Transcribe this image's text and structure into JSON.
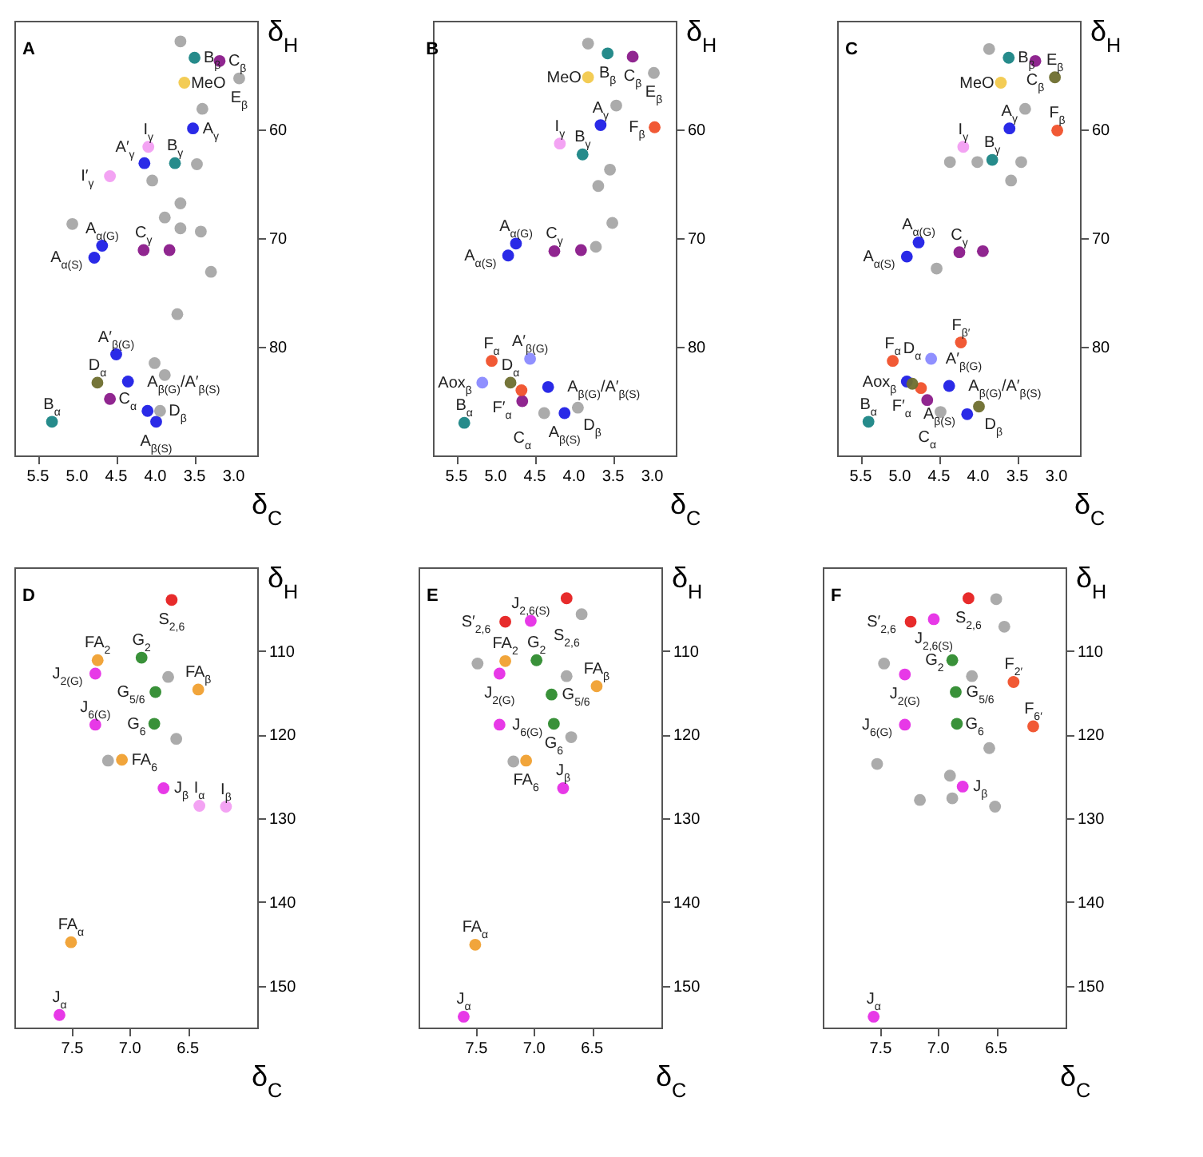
{
  "chart_data": [
    {
      "type": "scatter",
      "title": "A",
      "xlabel": "δ$_{C}$",
      "ylabel": "δ$_{H}$",
      "xlim": [
        5.8,
        2.7
      ],
      "ylim": [
        90,
        50
      ],
      "xticks": [
        5.5,
        {
          "value": 5,
          "label": "5.0"
        },
        4.5,
        {
          "value": 4,
          "label": "4.0"
        },
        3.5,
        {
          "value": 3,
          "label": "3.0"
        }
      ],
      "yticks": [
        60,
        70,
        80
      ],
      "marker": "circle",
      "grid": false,
      "series": [
        {
          "color": "#1f1fe6",
          "x": [
            3.52,
            4.14,
            4.68,
            4.78,
            4.5,
            4.35,
            4.1,
            3.99
          ],
          "values": [
            59.9,
            63.1,
            70.7,
            71.8,
            80.7,
            83.2,
            85.9,
            86.9
          ]
        },
        {
          "color": "#1a8585",
          "x": [
            3.5,
            3.75,
            5.32
          ],
          "values": [
            53.4,
            63.1,
            86.9
          ]
        },
        {
          "color": "#8a1a8a",
          "x": [
            3.18,
            4.15,
            3.82,
            4.58
          ],
          "values": [
            53.7,
            71.1,
            71.1,
            84.8
          ]
        },
        {
          "color": "#f2c94c",
          "x": [
            3.63
          ],
          "values": [
            55.7
          ]
        },
        {
          "color": "#f29ef2",
          "x": [
            4.09,
            4.58
          ],
          "values": [
            61.6,
            64.3
          ]
        },
        {
          "color": "#6e6e2e",
          "x": [
            4.74
          ],
          "values": [
            83.3
          ]
        },
        {
          "color": "#a6a6a6",
          "x": [
            2.93,
            3.94,
            3.68,
            3.4,
            3.47,
            4.04,
            3.68,
            3.88,
            3.68,
            3.42,
            5.06,
            3.29,
            3.72,
            4.01,
            3.88
          ],
          "values": [
            55.3,
            85.9,
            51.9,
            58.1,
            63.2,
            64.7,
            66.8,
            68.1,
            69.1,
            69.4,
            68.7,
            73.1,
            77.0,
            81.5,
            82.6
          ]
        }
      ],
      "annotations": [
        {
          "text": "B$_{β}$",
          "x": 3.5,
          "y": 53.4
        },
        {
          "text": "C$_{β}$",
          "x": 3.18,
          "y": 53.7
        },
        {
          "text": "E$_{β}$",
          "x": 2.93,
          "y": 55.3
        },
        {
          "text": "MeO",
          "x": 3.63,
          "y": 55.7
        },
        {
          "text": "A$_{γ}$",
          "x": 3.52,
          "y": 59.9
        },
        {
          "text": "I$_{γ}$",
          "x": 4.09,
          "y": 61.6
        },
        {
          "text": "A′$_{γ}$",
          "x": 4.14,
          "y": 63.1
        },
        {
          "text": "I′$_{γ}$",
          "x": 4.58,
          "y": 64.3
        },
        {
          "text": "B$_{γ}$",
          "x": 3.75,
          "y": 63.1
        },
        {
          "text": "A$_{α(G)}$",
          "x": 4.68,
          "y": 70.7
        },
        {
          "text": "A$_{α(S)}$",
          "x": 4.78,
          "y": 71.8
        },
        {
          "text": "C$_{γ}$",
          "x": 4.15,
          "y": 71.1
        },
        {
          "text": "A′$_{β(G)}$",
          "x": 4.5,
          "y": 80.7
        },
        {
          "text": "D$_{α}$",
          "x": 4.74,
          "y": 83.3
        },
        {
          "text": "A$_{β(G)}$/A′$_{β(S)}$",
          "x": 4.35,
          "y": 83.2
        },
        {
          "text": "C$_{α}$",
          "x": 4.58,
          "y": 84.8
        },
        {
          "text": "D$_{β}$",
          "x": 3.94,
          "y": 85.9
        },
        {
          "text": "A$_{β(S)}$",
          "x": 3.99,
          "y": 86.9
        },
        {
          "text": "B$_{α}$",
          "x": 5.32,
          "y": 86.9
        }
      ]
    },
    {
      "type": "scatter",
      "title": "B",
      "xlabel": "δ$_{C}$",
      "ylabel": "δ$_{H}$",
      "xlim": [
        5.8,
        2.7
      ],
      "ylim": [
        90,
        50
      ],
      "xticks": [
        5.5,
        {
          "value": 5,
          "label": "5.0"
        },
        4.5,
        {
          "value": 4,
          "label": "4.0"
        },
        3.5,
        {
          "value": 3,
          "label": "3.0"
        }
      ],
      "yticks": [
        60,
        70,
        80
      ],
      "marker": "circle",
      "grid": false,
      "series": [
        {
          "color": "#1f1fe6",
          "x": [
            3.66,
            4.74,
            4.84,
            4.33,
            4.12
          ],
          "values": [
            59.6,
            70.5,
            71.6,
            83.7,
            86.1
          ]
        },
        {
          "color": "#8a8aff",
          "x": [
            4.56,
            5.17
          ],
          "values": [
            81.1,
            83.3
          ]
        },
        {
          "color": "#1a8585",
          "x": [
            3.57,
            3.89,
            5.4
          ],
          "values": [
            53.0,
            62.3,
            87.0
          ]
        },
        {
          "color": "#8a1a8a",
          "x": [
            3.25,
            4.25,
            3.91,
            4.66
          ],
          "values": [
            53.3,
            71.2,
            71.1,
            85.0
          ]
        },
        {
          "color": "#f2c94c",
          "x": [
            3.82
          ],
          "values": [
            55.2
          ]
        },
        {
          "color": "#f0502a",
          "x": [
            2.97,
            5.05,
            4.67
          ],
          "values": [
            59.8,
            81.3,
            84.0
          ]
        },
        {
          "color": "#f29ef2",
          "x": [
            4.18
          ],
          "values": [
            61.3
          ]
        },
        {
          "color": "#6e6e2e",
          "x": [
            4.81
          ],
          "values": [
            83.3
          ]
        },
        {
          "color": "#a6a6a6",
          "x": [
            2.98,
            3.95,
            3.82,
            3.46,
            3.54,
            3.69,
            3.51,
            3.72,
            4.38
          ],
          "values": [
            54.8,
            85.6,
            52.1,
            57.8,
            63.7,
            65.2,
            68.6,
            70.8,
            86.1
          ]
        }
      ],
      "annotations": [
        {
          "text": "B$_{β}$",
          "x": 3.57,
          "y": 53.0
        },
        {
          "text": "C$_{β}$",
          "x": 3.25,
          "y": 53.3
        },
        {
          "text": "E$_{β}$",
          "x": 2.98,
          "y": 54.8
        },
        {
          "text": "MeO",
          "x": 3.82,
          "y": 55.2
        },
        {
          "text": "A$_{γ}$",
          "x": 3.66,
          "y": 59.6
        },
        {
          "text": "F$_{β}$",
          "x": 2.97,
          "y": 59.8
        },
        {
          "text": "I$_{γ}$",
          "x": 4.18,
          "y": 61.3
        },
        {
          "text": "B$_{γ}$",
          "x": 3.89,
          "y": 62.3
        },
        {
          "text": "A$_{α(G)}$",
          "x": 4.74,
          "y": 70.5
        },
        {
          "text": "A$_{α(S)}$",
          "x": 4.84,
          "y": 71.6
        },
        {
          "text": "C$_{γ}$",
          "x": 4.25,
          "y": 71.2
        },
        {
          "text": "F$_{α}$",
          "x": 5.05,
          "y": 81.3
        },
        {
          "text": "A′$_{β(G)}$",
          "x": 4.56,
          "y": 81.1
        },
        {
          "text": "Aox$_{β}$",
          "x": 5.17,
          "y": 83.3
        },
        {
          "text": "D$_{α}$",
          "x": 4.81,
          "y": 83.3
        },
        {
          "text": "A$_{β(G)}$/A′$_{β(S)}$",
          "x": 4.33,
          "y": 83.7
        },
        {
          "text": "F′$_{α}$",
          "x": 4.67,
          "y": 84.0
        },
        {
          "text": "C$_{α}$",
          "x": 4.66,
          "y": 85.0
        },
        {
          "text": "D$_{β}$",
          "x": 3.95,
          "y": 85.6
        },
        {
          "text": "A$_{β(S)}$",
          "x": 4.12,
          "y": 86.1
        },
        {
          "text": "B$_{α}$",
          "x": 5.4,
          "y": 87.0
        }
      ]
    },
    {
      "type": "scatter",
      "title": "C",
      "xlabel": "δ$_{C}$",
      "ylabel": "δ$_{H}$",
      "xlim": [
        5.8,
        2.7
      ],
      "ylim": [
        90,
        50
      ],
      "xticks": [
        5.5,
        {
          "value": 5,
          "label": "5.0"
        },
        4.5,
        {
          "value": 4,
          "label": "4.0"
        },
        3.5,
        {
          "value": 3,
          "label": "3.0"
        }
      ],
      "yticks": [
        60,
        70,
        80
      ],
      "marker": "circle",
      "grid": false,
      "series": [
        {
          "color": "#1f1fe6",
          "x": [
            3.6,
            4.76,
            4.91,
            4.91,
            4.37,
            4.14
          ],
          "values": [
            59.9,
            70.4,
            71.7,
            83.2,
            83.6,
            86.2
          ]
        },
        {
          "color": "#8a8aff",
          "x": [
            4.6
          ],
          "values": [
            81.1
          ]
        },
        {
          "color": "#1a8585",
          "x": [
            3.61,
            3.82,
            5.4
          ],
          "values": [
            53.4,
            62.8,
            86.9
          ]
        },
        {
          "color": "#8a1a8a",
          "x": [
            3.27,
            4.24,
            3.94,
            4.65
          ],
          "values": [
            53.7,
            71.3,
            71.2,
            84.9
          ]
        },
        {
          "color": "#f2c94c",
          "x": [
            3.71
          ],
          "values": [
            55.7
          ]
        },
        {
          "color": "#f0502a",
          "x": [
            2.99,
            4.22,
            5.09,
            4.73
          ],
          "values": [
            60.1,
            79.6,
            81.3,
            83.8
          ]
        },
        {
          "color": "#f29ef2",
          "x": [
            4.19
          ],
          "values": [
            61.6
          ]
        },
        {
          "color": "#6e6e2e",
          "x": [
            3.02,
            4.84,
            3.99
          ],
          "values": [
            55.2,
            83.4,
            85.5
          ]
        },
        {
          "color": "#a6a6a6",
          "x": [
            3.86,
            3.4,
            4.01,
            4.36,
            3.58,
            4.53,
            4.48,
            3.45
          ],
          "values": [
            52.6,
            58.1,
            63.0,
            63.0,
            64.7,
            72.8,
            86.0,
            63.0
          ]
        }
      ],
      "annotations": [
        {
          "text": "B$_{β}$",
          "x": 3.61,
          "y": 53.4
        },
        {
          "text": "C$_{β}$",
          "x": 3.27,
          "y": 53.7
        },
        {
          "text": "E$_{β}$",
          "x": 3.02,
          "y": 55.2
        },
        {
          "text": "MeO",
          "x": 3.71,
          "y": 55.7
        },
        {
          "text": "A$_{γ}$",
          "x": 3.6,
          "y": 59.9
        },
        {
          "text": "F$_{β}$",
          "x": 2.99,
          "y": 60.1
        },
        {
          "text": "I$_{γ}$",
          "x": 4.19,
          "y": 61.6
        },
        {
          "text": "B$_{γ}$",
          "x": 3.82,
          "y": 62.8
        },
        {
          "text": "A$_{α(G)}$",
          "x": 4.76,
          "y": 70.4
        },
        {
          "text": "A$_{α(S)}$",
          "x": 4.91,
          "y": 71.7
        },
        {
          "text": "C$_{γ}$",
          "x": 4.24,
          "y": 71.3
        },
        {
          "text": "F$_{β′}$",
          "x": 4.22,
          "y": 79.6
        },
        {
          "text": "F$_{α}$",
          "x": 5.09,
          "y": 81.3
        },
        {
          "text": "A′$_{β(G)}$",
          "x": 4.6,
          "y": 81.1
        },
        {
          "text": "Aox$_{β}$",
          "x": 4.91,
          "y": 83.2
        },
        {
          "text": "D$_{α}$",
          "x": 4.84,
          "y": 83.4
        },
        {
          "text": "A$_{β(G)}$/A′$_{β(S)}$",
          "x": 4.37,
          "y": 83.6
        },
        {
          "text": "F′$_{α}$",
          "x": 4.73,
          "y": 83.8
        },
        {
          "text": "C$_{α}$",
          "x": 4.65,
          "y": 84.9
        },
        {
          "text": "D$_{β}$",
          "x": 3.99,
          "y": 85.5
        },
        {
          "text": "A$_{β(S)}$",
          "x": 4.14,
          "y": 86.2
        },
        {
          "text": "B$_{α}$",
          "x": 5.4,
          "y": 86.9
        }
      ]
    },
    {
      "type": "scatter",
      "title": "D",
      "xlabel": "δ$_{C}$",
      "ylabel": "δ$_{H}$",
      "xlim": [
        8.0,
        5.9
      ],
      "ylim": [
        155,
        100
      ],
      "xticks": [
        7.5,
        {
          "value": 7,
          "label": "7.0"
        },
        6.5
      ],
      "yticks": [
        110,
        120,
        130,
        140,
        150
      ],
      "marker": "circle",
      "grid": false,
      "series": [
        {
          "color": "#e62020",
          "x": [
            6.64
          ],
          "values": [
            103.9
          ]
        },
        {
          "color": "#2e8b2e",
          "x": [
            6.9,
            6.78,
            6.79
          ],
          "values": [
            110.8,
            114.9,
            118.7
          ]
        },
        {
          "color": "#f0a030",
          "x": [
            7.28,
            6.41,
            7.07,
            7.51
          ],
          "values": [
            111.1,
            114.6,
            123.0,
            144.8
          ]
        },
        {
          "color": "#e62ee6",
          "x": [
            7.3,
            7.3,
            6.71,
            7.61
          ],
          "values": [
            112.7,
            118.8,
            126.4,
            153.5
          ]
        },
        {
          "color": "#f29ef2",
          "x": [
            6.4,
            6.17
          ],
          "values": [
            128.5,
            128.6
          ]
        },
        {
          "color": "#a6a6a6",
          "x": [
            6.67,
            6.6,
            7.19
          ],
          "values": [
            113.1,
            120.5,
            123.1
          ]
        }
      ],
      "annotations": [
        {
          "text": "S$_{2,6}$",
          "x": 6.64,
          "y": 103.9
        },
        {
          "text": "FA$_{2}$",
          "x": 7.28,
          "y": 111.1
        },
        {
          "text": "G$_{2}$",
          "x": 6.9,
          "y": 110.8
        },
        {
          "text": "J$_{2(G)}$",
          "x": 7.3,
          "y": 112.7
        },
        {
          "text": "FA$_{β}$",
          "x": 6.41,
          "y": 114.6
        },
        {
          "text": "G$_{5/6}$",
          "x": 6.78,
          "y": 114.9
        },
        {
          "text": "J$_{6(G)}$",
          "x": 7.3,
          "y": 118.8
        },
        {
          "text": "G$_{6}$",
          "x": 6.79,
          "y": 118.7
        },
        {
          "text": "FA$_{6}$",
          "x": 7.07,
          "y": 123.0
        },
        {
          "text": "J$_{β}$",
          "x": 6.71,
          "y": 126.4
        },
        {
          "text": "I$_{α}$",
          "x": 6.4,
          "y": 128.5
        },
        {
          "text": "I$_{β}$",
          "x": 6.17,
          "y": 128.6
        },
        {
          "text": "FA$_{α}$",
          "x": 7.51,
          "y": 144.8
        },
        {
          "text": "J$_{α}$",
          "x": 7.61,
          "y": 153.5
        }
      ]
    },
    {
      "type": "scatter",
      "title": "E",
      "xlabel": "δ$_{C}$",
      "ylabel": "δ$_{H}$",
      "xlim": [
        8.0,
        5.9
      ],
      "ylim": [
        155,
        100
      ],
      "xticks": [
        7.5,
        {
          "value": 7,
          "label": "7.0"
        },
        6.5
      ],
      "yticks": [
        110,
        120,
        130,
        140,
        150
      ],
      "marker": "circle",
      "grid": false,
      "series": [
        {
          "color": "#e62020",
          "x": [
            6.72,
            7.25
          ],
          "values": [
            103.7,
            106.5
          ]
        },
        {
          "color": "#2e8b2e",
          "x": [
            6.98,
            6.85,
            6.83
          ],
          "values": [
            111.1,
            115.2,
            118.7
          ]
        },
        {
          "color": "#f0a030",
          "x": [
            7.25,
            6.46,
            7.07,
            7.51
          ],
          "values": [
            111.2,
            114.2,
            123.1,
            145.1
          ]
        },
        {
          "color": "#e62ee6",
          "x": [
            7.03,
            7.3,
            7.3,
            6.75,
            7.61
          ],
          "values": [
            106.4,
            112.7,
            118.8,
            126.4,
            153.7
          ]
        },
        {
          "color": "#a6a6a6",
          "x": [
            6.59,
            7.49,
            6.72,
            6.68,
            7.18
          ],
          "values": [
            105.6,
            111.5,
            113.0,
            120.3,
            123.2
          ]
        }
      ],
      "annotations": [
        {
          "text": "S$_{2,6}$",
          "x": 6.72,
          "y": 103.7
        },
        {
          "text": "S′$_{2,6}$",
          "x": 7.25,
          "y": 106.5
        },
        {
          "text": "J$_{2,6(S)}$",
          "x": 7.03,
          "y": 106.4
        },
        {
          "text": "FA$_{2}$",
          "x": 7.25,
          "y": 111.2
        },
        {
          "text": "G$_{2}$",
          "x": 6.98,
          "y": 111.1
        },
        {
          "text": "J$_{2(G)}$",
          "x": 7.3,
          "y": 112.7
        },
        {
          "text": "FA$_{β}$",
          "x": 6.46,
          "y": 114.2
        },
        {
          "text": "G$_{5/6}$",
          "x": 6.85,
          "y": 115.2
        },
        {
          "text": "J$_{6(G)}$",
          "x": 7.3,
          "y": 118.8
        },
        {
          "text": "G$_{6}$",
          "x": 6.83,
          "y": 118.7
        },
        {
          "text": "FA$_{6}$",
          "x": 7.07,
          "y": 123.1
        },
        {
          "text": "J$_{β}$",
          "x": 6.75,
          "y": 126.4
        },
        {
          "text": "FA$_{α}$",
          "x": 7.51,
          "y": 145.1
        },
        {
          "text": "J$_{α}$",
          "x": 7.61,
          "y": 153.7
        }
      ]
    },
    {
      "type": "scatter",
      "title": "F",
      "xlabel": "δ$_{C}$",
      "ylabel": "δ$_{H}$",
      "xlim": [
        8.0,
        5.9
      ],
      "ylim": [
        155,
        100
      ],
      "xticks": [
        7.5,
        {
          "value": 7,
          "label": "7.0"
        },
        6.5
      ],
      "yticks": [
        110,
        120,
        130,
        140,
        150
      ],
      "marker": "circle",
      "grid": false,
      "series": [
        {
          "color": "#e62020",
          "x": [
            6.74,
            7.24
          ],
          "values": [
            103.7,
            106.5
          ]
        },
        {
          "color": "#2e8b2e",
          "x": [
            6.88,
            6.85,
            6.84
          ],
          "values": [
            111.1,
            114.9,
            118.7
          ]
        },
        {
          "color": "#e62ee6",
          "x": [
            7.04,
            7.29,
            7.29,
            6.79,
            7.56
          ],
          "values": [
            106.2,
            112.8,
            118.8,
            126.2,
            153.7
          ]
        },
        {
          "color": "#f0502a",
          "x": [
            6.35,
            6.18
          ],
          "values": [
            113.7,
            119.0
          ]
        },
        {
          "color": "#a6a6a6",
          "x": [
            7.47,
            6.5,
            6.43,
            6.71,
            6.56,
            7.53,
            6.9,
            6.88,
            6.51,
            7.16
          ],
          "values": [
            111.5,
            103.8,
            107.1,
            113.0,
            121.6,
            123.5,
            124.9,
            127.6,
            128.6,
            127.8
          ]
        }
      ],
      "annotations": [
        {
          "text": "S$_{2,6}$",
          "x": 6.74,
          "y": 103.7
        },
        {
          "text": "S′$_{2,6}$",
          "x": 7.24,
          "y": 106.5
        },
        {
          "text": "J$_{2,6(S)}$",
          "x": 7.04,
          "y": 106.2
        },
        {
          "text": "J$_{2(G)}$",
          "x": 7.29,
          "y": 112.8
        },
        {
          "text": "G$_{2}$",
          "x": 6.88,
          "y": 111.1
        },
        {
          "text": "F$_{2′}$",
          "x": 6.35,
          "y": 113.7
        },
        {
          "text": "G$_{5/6}$",
          "x": 6.85,
          "y": 114.9
        },
        {
          "text": "F$_{6′}$",
          "x": 6.18,
          "y": 119.0
        },
        {
          "text": "J$_{6(G)}$",
          "x": 7.29,
          "y": 118.8
        },
        {
          "text": "G$_{6}$",
          "x": 6.84,
          "y": 118.7
        },
        {
          "text": "J$_{β}$",
          "x": 6.79,
          "y": 126.2
        },
        {
          "text": "J$_{α}$",
          "x": 7.56,
          "y": 153.7
        }
      ]
    }
  ]
}
